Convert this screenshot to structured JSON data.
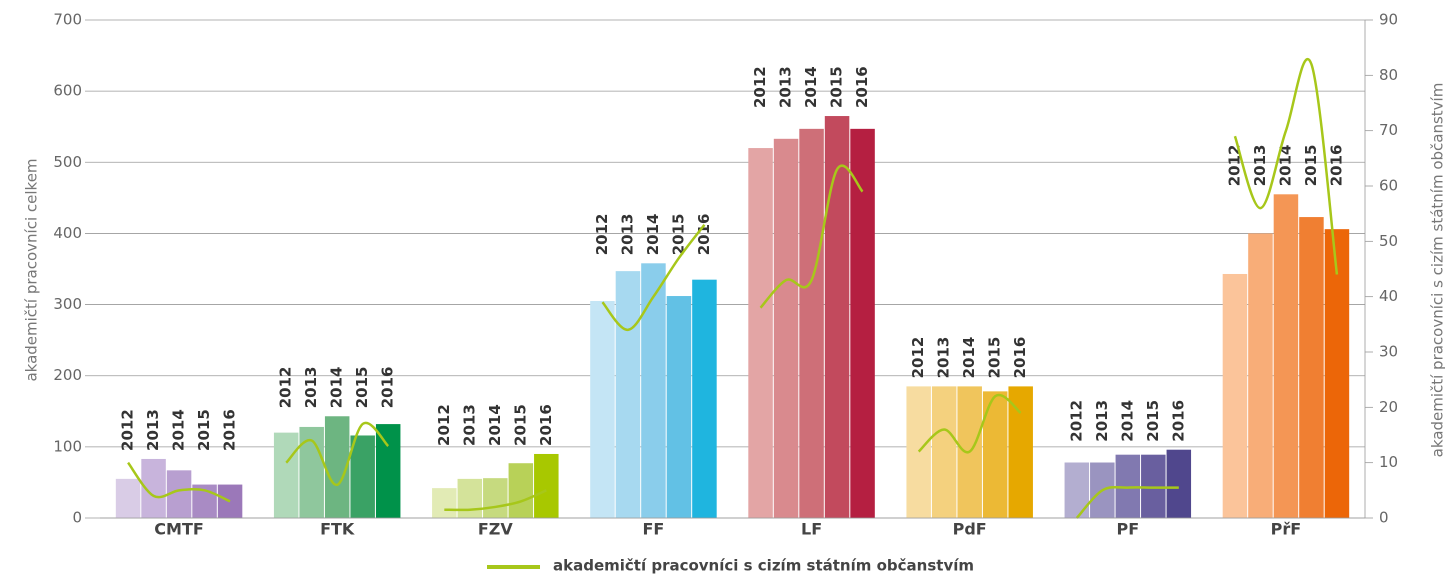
{
  "chart_data": {
    "type": "bar",
    "ylabel": "akademičtí pracovníci celkem",
    "y2label": "akademičtí pracovníci s cizím státním občanstvím",
    "categories": [
      "CMTF",
      "FTK",
      "FZV",
      "FF",
      "LF",
      "PdF",
      "PF",
      "PřF"
    ],
    "series": [
      {
        "name": "2012",
        "colors": [
          "#d9cce6",
          "#b0d9b9",
          "#e2ebb5",
          "#c4e5f5",
          "#e3a5a5",
          "#f7dca0",
          "#b3aed0",
          "#fbc49a"
        ],
        "values": [
          55,
          120,
          42,
          305,
          520,
          185,
          78,
          343
        ]
      },
      {
        "name": "2013",
        "colors": [
          "#c8b4dc",
          "#8fc79d",
          "#d4e39a",
          "#a7d9f0",
          "#d98a8e",
          "#f4d17e",
          "#9a94c0",
          "#f8ad78"
        ],
        "values": [
          83,
          128,
          55,
          347,
          533,
          185,
          78,
          400
        ]
      },
      {
        "name": "2014",
        "colors": [
          "#b89fd0",
          "#6db581",
          "#c6da7f",
          "#8acdeb",
          "#ce6f78",
          "#f0c55c",
          "#8179b0",
          "#f49655"
        ],
        "values": [
          67,
          143,
          56,
          358,
          547,
          185,
          89,
          455
        ]
      },
      {
        "name": "2015",
        "colors": [
          "#a98bc4",
          "#3aa265",
          "#b8d158",
          "#62c1e5",
          "#c24a5d",
          "#ecb935",
          "#695f9f",
          "#f07f32"
        ],
        "values": [
          47,
          116,
          77,
          312,
          565,
          178,
          89,
          423
        ]
      },
      {
        "name": "2016",
        "colors": [
          "#9b78b9",
          "#00924a",
          "#a8c800",
          "#1fb5df",
          "#b51f41",
          "#e6a800",
          "#50478d",
          "#ec6608"
        ],
        "values": [
          47,
          132,
          90,
          335,
          547,
          185,
          96,
          406
        ]
      }
    ],
    "line": {
      "name": "akademičtí pracovníci s cizím státním občanstvím",
      "color": "#a7c71a",
      "axis": "y2",
      "values": [
        [
          10,
          4,
          5,
          5,
          3
        ],
        [
          10,
          14,
          6,
          17,
          13
        ],
        [
          1.5,
          1.5,
          2,
          3,
          5
        ],
        [
          39,
          34,
          40,
          47,
          53
        ],
        [
          38,
          43,
          43,
          63,
          59
        ],
        [
          12,
          16,
          12,
          22,
          19
        ],
        [
          0,
          5,
          5.5,
          5.5,
          5.5
        ],
        [
          69,
          56,
          70,
          82,
          44
        ]
      ]
    },
    "ylim": [
      0,
      700
    ],
    "yticks": [
      0,
      100,
      200,
      300,
      400,
      500,
      600,
      700
    ],
    "y2lim": [
      0,
      90
    ],
    "y2ticks": [
      0,
      10,
      20,
      30,
      40,
      50,
      60,
      70,
      80,
      90
    ],
    "grid": true
  }
}
